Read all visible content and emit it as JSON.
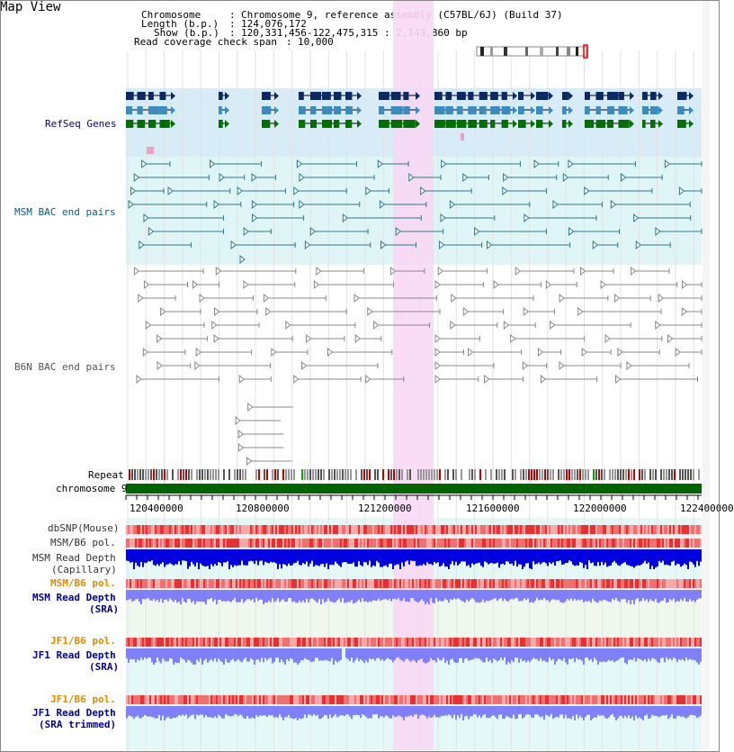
{
  "view_title": "Map View",
  "info": {
    "chromosome_label": "Chromosome",
    "chromosome_value": "Chromosome 9, reference assembly (C57BL/6J) (Build 37)",
    "length_label": "Length (b.p.)",
    "length_value": "124,076,172",
    "show_label": "Show (b.p.)",
    "show_value": "120,331,456-122,475,315 : 2,143,860 bp",
    "coverage_label": "Read coverage check span",
    "coverage_value": "10,000"
  },
  "track_labels": {
    "refseq": "RefSeq Genes",
    "msm_bac": "MSM BAC end pairs",
    "b6n_bac": "B6N BAC end pairs",
    "repeat": "Repeat",
    "chromosome": "chromosome 9",
    "dbsnp": "dbSNP(Mouse)",
    "msm_b6_pol": "MSM/B6 pol.",
    "msm_depth_cap_1": "MSM Read Depth",
    "msm_depth_cap_2": "(Capillary)",
    "msm_b6_pol_2": "MSM/B6 pol.",
    "msm_depth_sra_1": "MSM Read Depth",
    "msm_depth_sra_2": "(SRA)",
    "jf1_pol": "JF1/B6 pol.",
    "jf1_depth_sra_1": "JF1 Read Depth",
    "jf1_depth_sra_2": "(SRA)",
    "jf1_pol_2": "JF1/B6 pol.",
    "jf1_depth_trim_1": "JF1 Read Depth",
    "jf1_depth_trim_2": "(SRA trimmed)"
  },
  "axis_ticks": [
    "120400000",
    "120800000",
    "121200000",
    "121600000",
    "122000000",
    "122400000"
  ],
  "colors": {
    "refseq_label": "#00008b",
    "msm_label": "#006080",
    "b6n_label": "#555555",
    "orange_label": "#e08a00",
    "blue_label": "#0000a0",
    "highlight": "#f8d8f4",
    "gene_dark": "#0a2a66",
    "gene_mid": "#3a8cc0",
    "gene_green": "#007000",
    "chromosome_bar": "#006400",
    "depth_capillary": "#0000e0",
    "depth_sra": "#8080ff"
  }
}
